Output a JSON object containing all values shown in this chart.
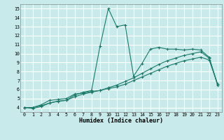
{
  "xlabel": "Humidex (Indice chaleur)",
  "xlim": [
    -0.5,
    23.5
  ],
  "ylim": [
    3.5,
    15.5
  ],
  "xticks": [
    0,
    1,
    2,
    3,
    4,
    5,
    6,
    7,
    8,
    9,
    10,
    11,
    12,
    13,
    14,
    15,
    16,
    17,
    18,
    19,
    20,
    21,
    22,
    23
  ],
  "yticks": [
    4,
    5,
    6,
    7,
    8,
    9,
    10,
    11,
    12,
    13,
    14,
    15
  ],
  "bg_color": "#c8eaea",
  "grid_color": "#ffffff",
  "line_color": "#1a7a6a",
  "line1_x": [
    0,
    1,
    2,
    3,
    4,
    5,
    6,
    7,
    8,
    9,
    10,
    11,
    12,
    13,
    14,
    15,
    16,
    17,
    18,
    19,
    20,
    21,
    22,
    23
  ],
  "line1_y": [
    4,
    3.9,
    4.1,
    4.5,
    4.7,
    4.8,
    5.4,
    5.7,
    5.9,
    10.8,
    15.0,
    13.0,
    13.2,
    7.5,
    8.9,
    10.5,
    10.7,
    10.5,
    10.5,
    10.4,
    10.5,
    10.4,
    9.6,
    6.5
  ],
  "line2_x": [
    0,
    1,
    2,
    3,
    4,
    5,
    6,
    7,
    8,
    9,
    10,
    11,
    12,
    13,
    14,
    15,
    16,
    17,
    18,
    19,
    20,
    21,
    22,
    23
  ],
  "line2_y": [
    4,
    4,
    4.3,
    4.8,
    4.9,
    5.0,
    5.5,
    5.6,
    5.8,
    5.9,
    6.2,
    6.5,
    6.9,
    7.3,
    7.8,
    8.3,
    8.8,
    9.2,
    9.5,
    9.8,
    10.0,
    10.2,
    9.5,
    6.6
  ],
  "line3_x": [
    0,
    1,
    2,
    3,
    4,
    5,
    6,
    7,
    8,
    9,
    10,
    11,
    12,
    13,
    14,
    15,
    16,
    17,
    18,
    19,
    20,
    21,
    22,
    23
  ],
  "line3_y": [
    4,
    4,
    4.2,
    4.5,
    4.7,
    4.8,
    5.2,
    5.5,
    5.7,
    5.9,
    6.1,
    6.3,
    6.6,
    7.0,
    7.4,
    7.8,
    8.2,
    8.6,
    8.9,
    9.2,
    9.4,
    9.6,
    9.3,
    6.6
  ]
}
